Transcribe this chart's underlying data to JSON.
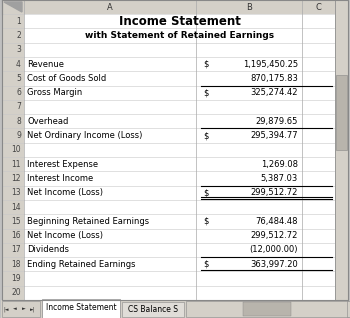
{
  "title": "Income Statement",
  "subtitle": "with Statement of Retained Earnings",
  "col_header_A": "A",
  "col_header_B": "B",
  "col_header_C": "C",
  "rows": [
    {
      "row": 1,
      "label": "",
      "dollar": "",
      "value": ""
    },
    {
      "row": 2,
      "label": "",
      "dollar": "",
      "value": ""
    },
    {
      "row": 3,
      "label": "",
      "dollar": "",
      "value": ""
    },
    {
      "row": 4,
      "label": "Revenue",
      "dollar": "$",
      "value": "1,195,450.25"
    },
    {
      "row": 5,
      "label": "Cost of Goods Sold",
      "dollar": "",
      "value": "870,175.83"
    },
    {
      "row": 6,
      "label": "Gross Margin",
      "dollar": "$",
      "value": "325,274.42"
    },
    {
      "row": 7,
      "label": "",
      "dollar": "",
      "value": ""
    },
    {
      "row": 8,
      "label": "Overhead",
      "dollar": "",
      "value": "29,879.65"
    },
    {
      "row": 9,
      "label": "Net Ordinary Income (Loss)",
      "dollar": "$",
      "value": "295,394.77"
    },
    {
      "row": 10,
      "label": "",
      "dollar": "",
      "value": ""
    },
    {
      "row": 11,
      "label": "Interest Expense",
      "dollar": "",
      "value": "1,269.08"
    },
    {
      "row": 12,
      "label": "Interest Income",
      "dollar": "",
      "value": "5,387.03"
    },
    {
      "row": 13,
      "label": "Net Income (Loss)",
      "dollar": "$",
      "value": "299,512.72"
    },
    {
      "row": 14,
      "label": "",
      "dollar": "",
      "value": ""
    },
    {
      "row": 15,
      "label": "Beginning Retained Earnings",
      "dollar": "$",
      "value": "76,484.48"
    },
    {
      "row": 16,
      "label": "Net Income (Loss)",
      "dollar": "",
      "value": "299,512.72"
    },
    {
      "row": 17,
      "label": "Dividends",
      "dollar": "",
      "value": "(12,000.00)"
    },
    {
      "row": 18,
      "label": "Ending Retained Earnings",
      "dollar": "$",
      "value": "363,997.20"
    },
    {
      "row": 19,
      "label": "",
      "dollar": "",
      "value": ""
    },
    {
      "row": 20,
      "label": "",
      "dollar": "",
      "value": ""
    }
  ],
  "single_underline_rows": [
    6,
    9,
    13,
    18
  ],
  "double_underline_rows": [
    13
  ],
  "bottom_single_rows": [
    18
  ],
  "bg_color": "#c0c0c0",
  "cell_bg": "#ffffff",
  "header_bg": "#d4d0c8",
  "grid_color": "#a0a0a0",
  "tab_active": "Income Statement",
  "tab_inactive": "CS Balance S",
  "title_fontsize": 8.5,
  "subtitle_fontsize": 6.5,
  "cell_fontsize": 6.0,
  "rownum_fontsize": 5.5,
  "colhdr_fontsize": 6.0
}
